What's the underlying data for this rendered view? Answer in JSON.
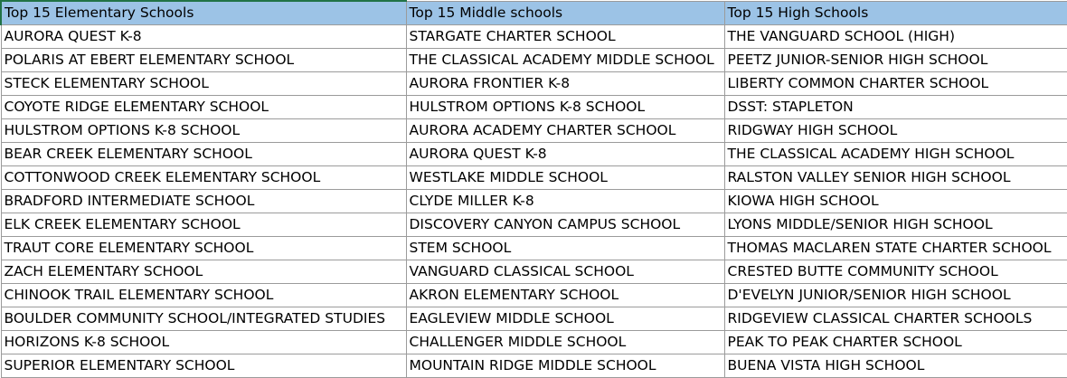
{
  "headers": [
    "Top 15 Elementary Schools",
    "Top 15 Middle schools",
    "Top 15 High Schools"
  ],
  "rows": [
    [
      "AURORA QUEST K-8",
      "STARGATE CHARTER SCHOOL",
      "THE VANGUARD SCHOOL (HIGH)"
    ],
    [
      "POLARIS AT EBERT ELEMENTARY SCHOOL",
      "THE CLASSICAL ACADEMY MIDDLE SCHOOL",
      "PEETZ JUNIOR-SENIOR HIGH SCHOOL"
    ],
    [
      "STECK ELEMENTARY SCHOOL",
      "AURORA FRONTIER K-8",
      "LIBERTY COMMON CHARTER SCHOOL"
    ],
    [
      "COYOTE RIDGE ELEMENTARY SCHOOL",
      "HULSTROM OPTIONS K-8 SCHOOL",
      "DSST: STAPLETON"
    ],
    [
      "HULSTROM OPTIONS K-8 SCHOOL",
      "AURORA ACADEMY CHARTER SCHOOL",
      "RIDGWAY HIGH SCHOOL"
    ],
    [
      "BEAR CREEK ELEMENTARY SCHOOL",
      "AURORA QUEST K-8",
      "THE CLASSICAL ACADEMY HIGH SCHOOL"
    ],
    [
      "COTTONWOOD CREEK ELEMENTARY SCHOOL",
      "WESTLAKE MIDDLE SCHOOL",
      "RALSTON VALLEY SENIOR HIGH SCHOOL"
    ],
    [
      "BRADFORD INTERMEDIATE SCHOOL",
      "CLYDE MILLER K-8",
      "KIOWA HIGH SCHOOL"
    ],
    [
      "ELK CREEK ELEMENTARY SCHOOL",
      "DISCOVERY CANYON CAMPUS SCHOOL",
      "LYONS MIDDLE/SENIOR HIGH SCHOOL"
    ],
    [
      "TRAUT CORE ELEMENTARY SCHOOL",
      "STEM SCHOOL",
      "THOMAS MACLAREN STATE CHARTER SCHOOL"
    ],
    [
      "ZACH ELEMENTARY SCHOOL",
      "VANGUARD CLASSICAL SCHOOL",
      "CRESTED BUTTE COMMUNITY SCHOOL"
    ],
    [
      "CHINOOK TRAIL ELEMENTARY SCHOOL",
      "AKRON ELEMENTARY SCHOOL",
      "D'EVELYN JUNIOR/SENIOR HIGH SCHOOL"
    ],
    [
      "BOULDER COMMUNITY SCHOOL/INTEGRATED STUDIES",
      "EAGLEVIEW MIDDLE SCHOOL",
      "RIDGEVIEW CLASSICAL CHARTER SCHOOLS"
    ],
    [
      "HORIZONS K-8 SCHOOL",
      "CHALLENGER MIDDLE SCHOOL",
      "PEAK TO PEAK CHARTER SCHOOL"
    ],
    [
      "SUPERIOR ELEMENTARY SCHOOL",
      "MOUNTAIN RIDGE MIDDLE SCHOOL",
      "BUENA VISTA HIGH SCHOOL"
    ]
  ],
  "colors": {
    "header_fill": "#9cc3e6",
    "grid_line": "#9b9b9b",
    "active_cell_border": "#217346"
  }
}
